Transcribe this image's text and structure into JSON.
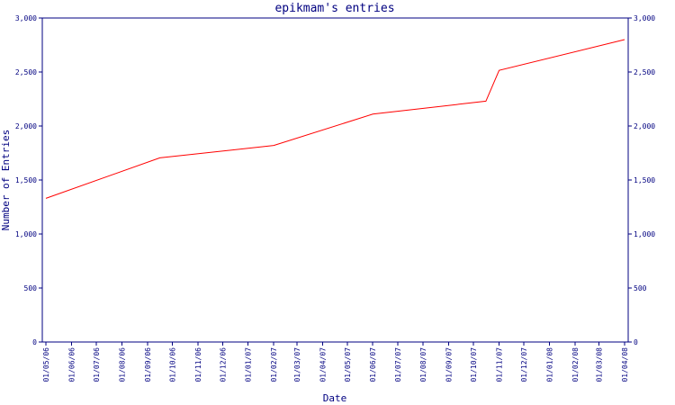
{
  "chart_data": {
    "type": "line",
    "title": "epikmam's entries",
    "xlabel": "Date",
    "ylabel": "Number of Entries",
    "ylim": [
      0,
      3000
    ],
    "y_ticks": [
      0,
      500,
      1000,
      1500,
      2000,
      2500,
      3000
    ],
    "y_tick_labels": [
      "0",
      "500",
      "1,000",
      "1,500",
      "2,000",
      "2,500",
      "3,000"
    ],
    "x_ticks": [
      "01/05/06",
      "01/06/06",
      "01/07/06",
      "01/08/06",
      "01/09/06",
      "01/10/06",
      "01/11/06",
      "01/12/06",
      "01/01/07",
      "01/02/07",
      "01/03/07",
      "01/04/07",
      "01/05/07",
      "01/06/07",
      "01/07/07",
      "01/08/07",
      "01/09/07",
      "01/10/07",
      "01/11/07",
      "01/12/07",
      "01/01/08",
      "01/02/08",
      "01/03/08",
      "01/04/08"
    ],
    "grid": false,
    "line_color": "#ff0000",
    "axis_color": "#000080",
    "series": [
      {
        "points": [
          {
            "x": "2006-05-01",
            "y": 1330
          },
          {
            "x": "2006-09-16",
            "y": 1705
          },
          {
            "x": "2007-02-01",
            "y": 1820
          },
          {
            "x": "2007-06-01",
            "y": 2110
          },
          {
            "x": "2007-10-16",
            "y": 2230
          },
          {
            "x": "2007-11-01",
            "y": 2515
          },
          {
            "x": "2008-04-01",
            "y": 2800
          }
        ]
      }
    ]
  }
}
